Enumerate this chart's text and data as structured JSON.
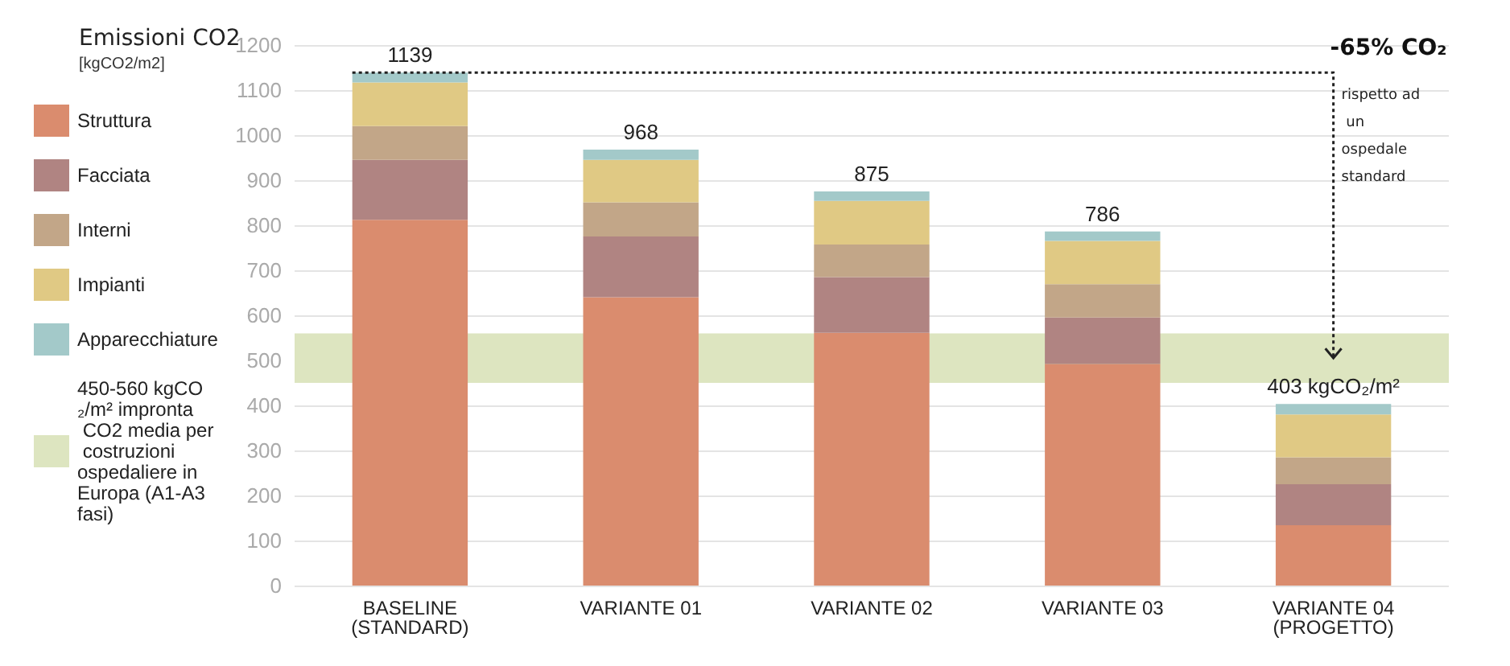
{
  "chart_data": {
    "type": "bar",
    "title": "Emissioni CO2",
    "subtitle": "[kgCO2/m2]",
    "categories": [
      "BASELINE\n(STANDARD)",
      "VARIANTE 01",
      "VARIANTE 02",
      "VARIANTE 03",
      "VARIANTE 04\n(PROGETTO)"
    ],
    "stacked": true,
    "series": [
      {
        "name": "Struttura",
        "color": "#da8c6e",
        "values": [
          812,
          640,
          561,
          492,
          134
        ]
      },
      {
        "name": "Facciata",
        "color": "#b08482",
        "values": [
          133,
          135,
          124,
          103,
          91
        ]
      },
      {
        "name": "Interni",
        "color": "#c2a688",
        "values": [
          75,
          76,
          72,
          74,
          60
        ]
      },
      {
        "name": "Impianti",
        "color": "#e0c984",
        "values": [
          97,
          94,
          97,
          96,
          95
        ]
      },
      {
        "name": "Apparecchiature",
        "color": "#a3c9c9",
        "values": [
          22,
          23,
          21,
          21,
          23
        ]
      }
    ],
    "totals": [
      "1139",
      "968",
      "875",
      "786",
      "403 kgCO₂/m²"
    ],
    "bands": [
      {
        "axis": "y",
        "from": 450,
        "to": 560,
        "label": "450-560 kgCO₂/m² impronta CO2 media per costruzioni ospedaliere in Europa (A1-A3 fasi)",
        "color": "#dde5c0"
      }
    ],
    "annotations": [
      "-65% CO₂",
      "rispetto ad un ospedale standard"
    ],
    "ylim": [
      0,
      1200
    ],
    "yticks": [
      0,
      100,
      200,
      300,
      400,
      500,
      600,
      700,
      800,
      900,
      1000,
      1100,
      1200
    ],
    "grid": "y",
    "legend": "left"
  }
}
